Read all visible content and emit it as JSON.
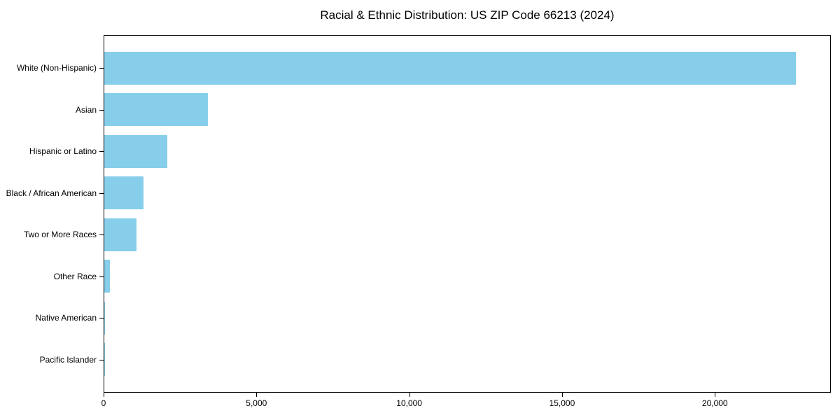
{
  "chart_data": {
    "type": "bar",
    "orientation": "horizontal",
    "title": "Racial & Ethnic Distribution: US ZIP Code 66213 (2024)",
    "categories": [
      "White (Non-Hispanic)",
      "Asian",
      "Hispanic or Latino",
      "Black / African American",
      "Two or More Races",
      "Other Race",
      "Native American",
      "Pacific Islander"
    ],
    "values": [
      22620,
      3390,
      2060,
      1280,
      1050,
      185,
      20,
      5
    ],
    "xlabel": "",
    "ylabel": "",
    "xlim": [
      0,
      23750
    ],
    "x_ticks": [
      0,
      5000,
      10000,
      15000,
      20000
    ],
    "x_tick_labels": [
      "0",
      "5,000",
      "10,000",
      "15,000",
      "20,000"
    ],
    "bar_color": "#87CEEB",
    "background_color": "#ffffff",
    "spine_color": "#000000",
    "grid": false,
    "legend": null
  }
}
